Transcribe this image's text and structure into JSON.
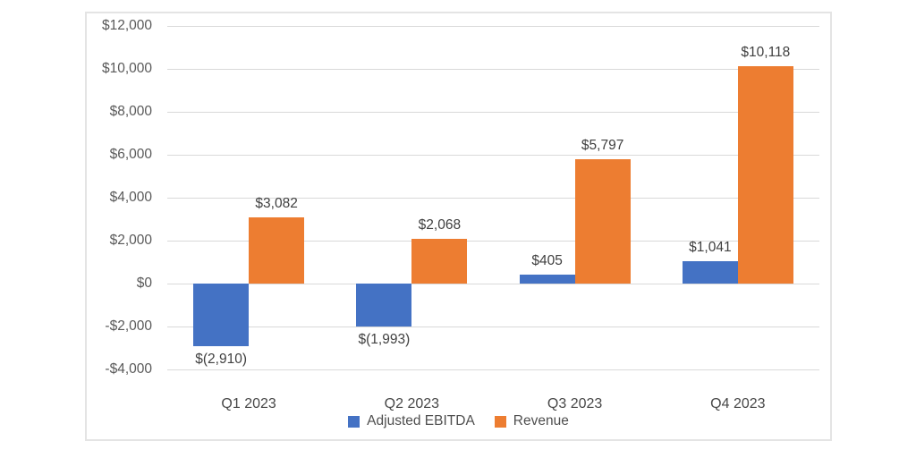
{
  "chart_data": {
    "type": "bar",
    "title": "",
    "categories": [
      "Q1 2023",
      "Q2 2023",
      "Q3 2023",
      "Q4 2023"
    ],
    "series": [
      {
        "name": "Adjusted EBITDA",
        "color": "#4472C4",
        "values": [
          -2910,
          -1993,
          405,
          1041
        ],
        "labels": [
          "$(2,910)",
          "$(1,993)",
          "$405",
          "$1,041"
        ]
      },
      {
        "name": "Revenue",
        "color": "#ED7D31",
        "values": [
          3082,
          2068,
          5797,
          10118
        ],
        "labels": [
          "$3,082",
          "$2,068",
          "$5,797",
          "$10,118"
        ]
      }
    ],
    "ylim": [
      -4000,
      12000
    ],
    "ytick_step": 2000,
    "yticks": [
      {
        "value": 12000,
        "label": "$12,000"
      },
      {
        "value": 10000,
        "label": "$10,000"
      },
      {
        "value": 8000,
        "label": "$8,000"
      },
      {
        "value": 6000,
        "label": "$6,000"
      },
      {
        "value": 4000,
        "label": "$4,000"
      },
      {
        "value": 2000,
        "label": "$2,000"
      },
      {
        "value": 0,
        "label": "$0"
      },
      {
        "value": -2000,
        "label": "-$2,000"
      },
      {
        "value": -4000,
        "label": "-$4,000"
      }
    ],
    "grid": true,
    "legend_position": "bottom",
    "gridline_color": "#d9d9d9",
    "tick_label_color": "#595959",
    "data_label_color": "#404040"
  }
}
